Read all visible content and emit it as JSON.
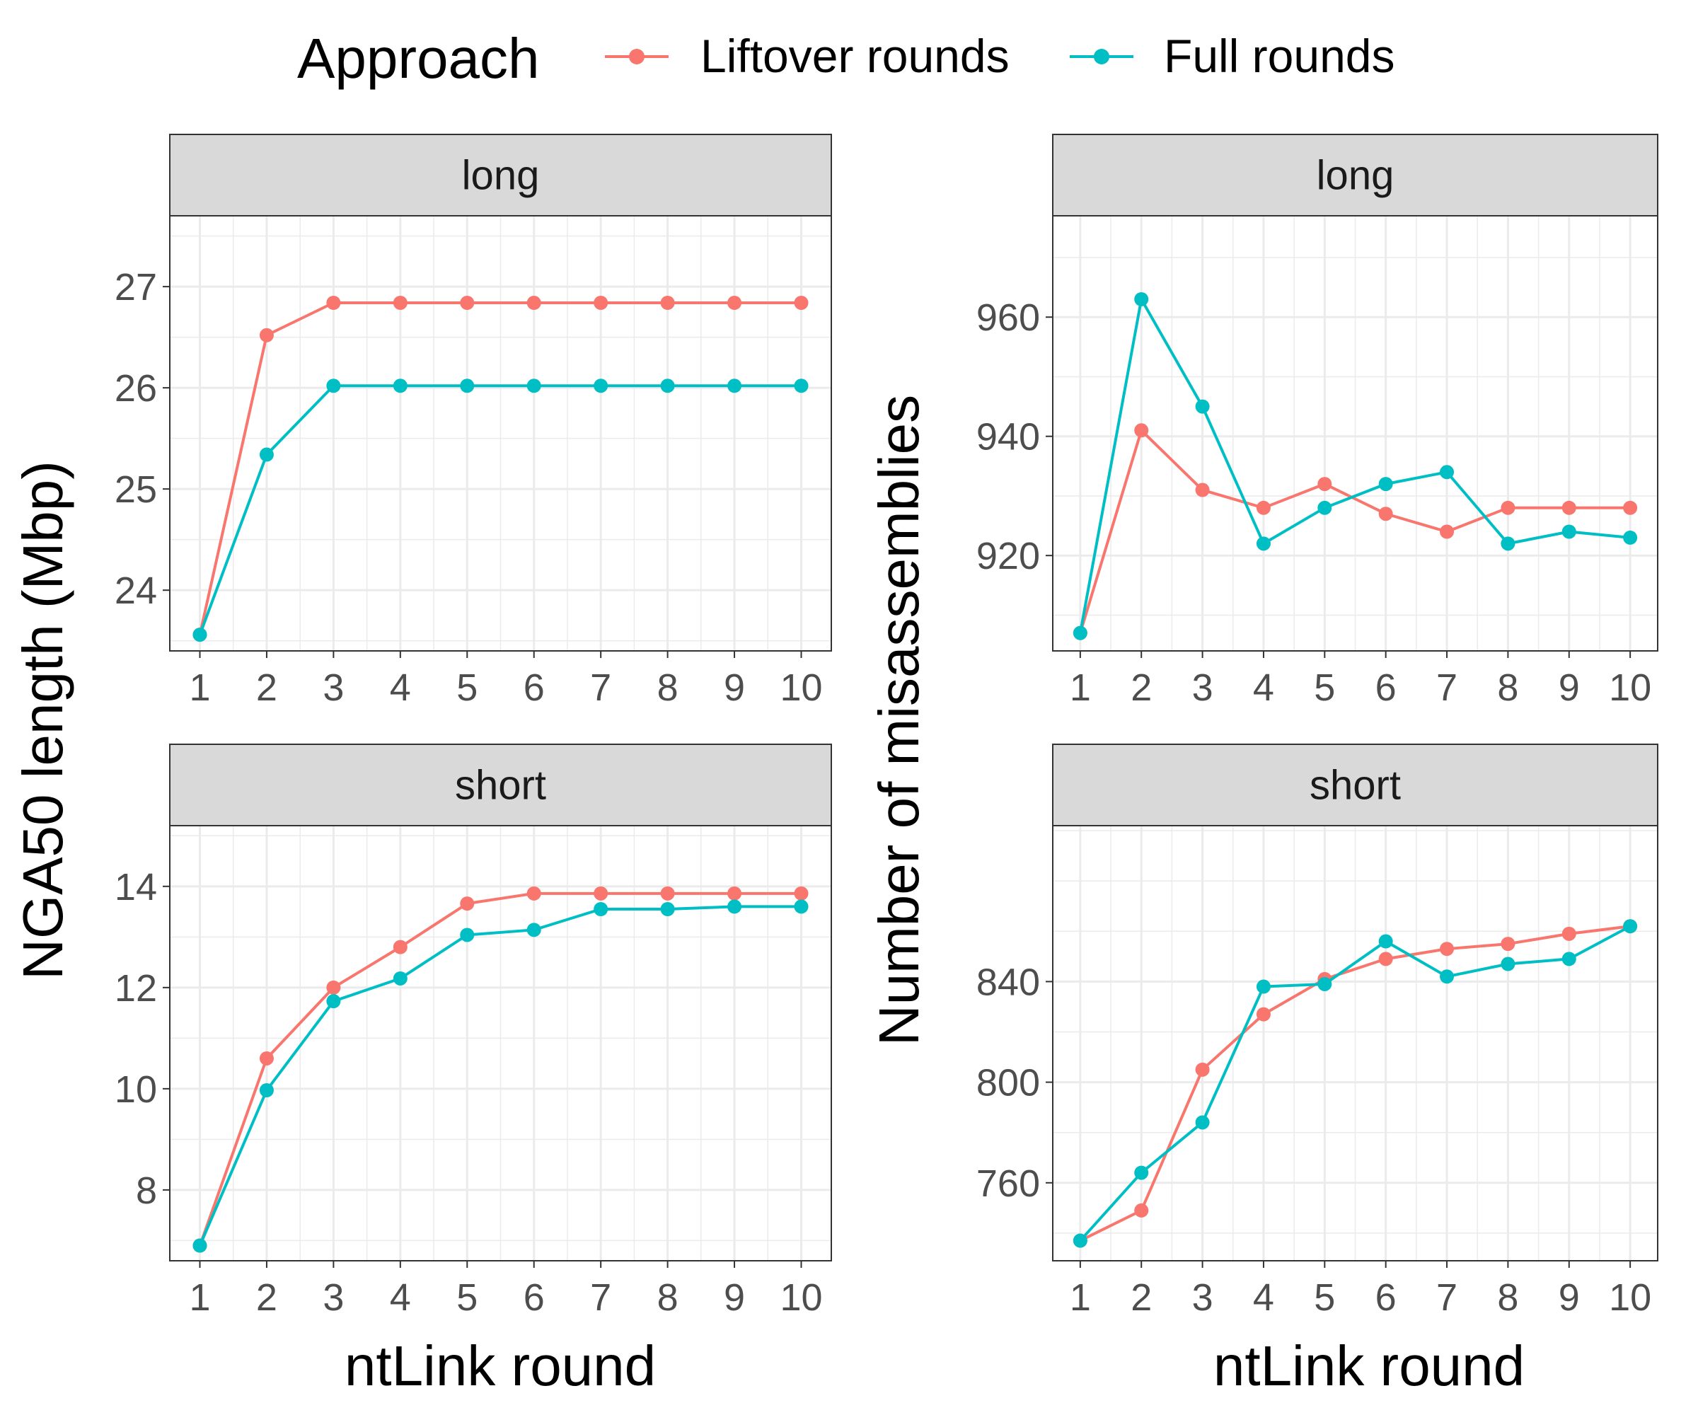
{
  "legend": {
    "title": "Approach",
    "entries": [
      {
        "label": "Liftover rounds",
        "color": "#F8766D"
      },
      {
        "label": "Full rounds",
        "color": "#00BFC4"
      }
    ]
  },
  "axes": {
    "left_ylabel": "NGA50 length (Mbp)",
    "right_ylabel": "Number of misassemblies",
    "xlabel": "ntLink round"
  },
  "chart_data": [
    {
      "type": "line",
      "strip": "long",
      "ylabel": "NGA50 length (Mbp)",
      "x": [
        1,
        2,
        3,
        4,
        5,
        6,
        7,
        8,
        9,
        10
      ],
      "ylim": [
        23.4,
        27.7
      ],
      "yticks": [
        24,
        25,
        26,
        27
      ],
      "series": [
        {
          "name": "Liftover rounds",
          "values": [
            23.56,
            26.52,
            26.84,
            26.84,
            26.84,
            26.84,
            26.84,
            26.84,
            26.84,
            26.84
          ]
        },
        {
          "name": "Full rounds",
          "values": [
            23.56,
            25.34,
            26.02,
            26.02,
            26.02,
            26.02,
            26.02,
            26.02,
            26.02,
            26.02
          ]
        }
      ]
    },
    {
      "type": "line",
      "strip": "long",
      "ylabel": "Number of misassemblies",
      "x": [
        1,
        2,
        3,
        4,
        5,
        6,
        7,
        8,
        9,
        10
      ],
      "ylim": [
        904,
        977
      ],
      "yticks": [
        920,
        940,
        960
      ],
      "series": [
        {
          "name": "Liftover rounds",
          "values": [
            907,
            941,
            931,
            928,
            932,
            927,
            924,
            928,
            928,
            928
          ]
        },
        {
          "name": "Full rounds",
          "values": [
            907,
            963,
            945,
            922,
            928,
            932,
            934,
            922,
            924,
            923
          ]
        }
      ]
    },
    {
      "type": "line",
      "strip": "short",
      "ylabel": "NGA50 length (Mbp)",
      "x": [
        1,
        2,
        3,
        4,
        5,
        6,
        7,
        8,
        9,
        10
      ],
      "ylim": [
        6.6,
        15.2
      ],
      "yticks": [
        8,
        10,
        12,
        14
      ],
      "series": [
        {
          "name": "Liftover rounds",
          "values": [
            6.9,
            10.6,
            12.0,
            12.8,
            13.66,
            13.86,
            13.86,
            13.86,
            13.86,
            13.86
          ]
        },
        {
          "name": "Full rounds",
          "values": [
            6.9,
            9.97,
            11.73,
            12.18,
            13.04,
            13.14,
            13.55,
            13.55,
            13.6,
            13.6
          ]
        }
      ]
    },
    {
      "type": "line",
      "strip": "short",
      "ylabel": "Number of misassemblies",
      "x": [
        1,
        2,
        3,
        4,
        5,
        6,
        7,
        8,
        9,
        10
      ],
      "ylim": [
        729,
        902
      ],
      "yticks": [
        760,
        800,
        840
      ],
      "series": [
        {
          "name": "Liftover rounds",
          "values": [
            737,
            749,
            805,
            827,
            841,
            849,
            853,
            855,
            859,
            862
          ]
        },
        {
          "name": "Full rounds",
          "values": [
            737,
            764,
            784,
            838,
            839,
            856,
            842,
            847,
            849,
            862
          ]
        }
      ]
    }
  ]
}
